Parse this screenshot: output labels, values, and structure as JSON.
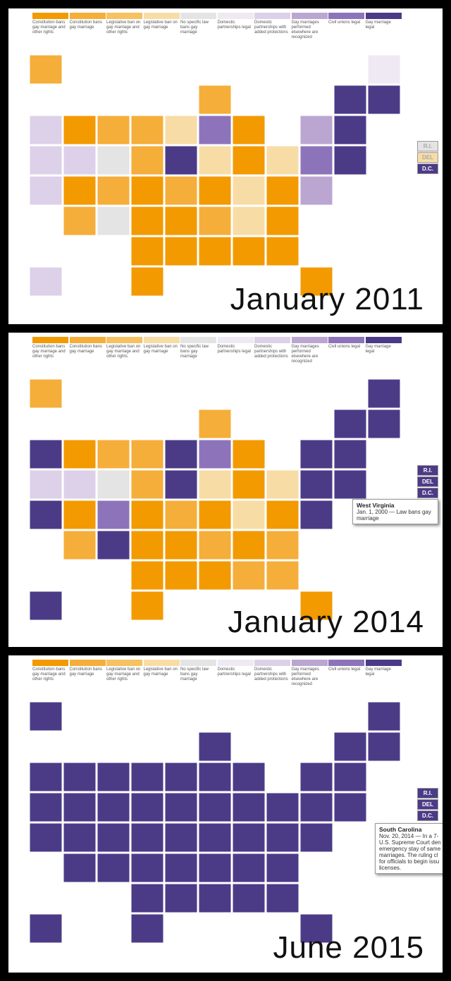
{
  "legend": {
    "labels": [
      "Constitution bans gay marriage and other rights",
      "Constitution bans gay marriage",
      "Legislative ban on gay marriage and other rights",
      "Legislative ban on gay marriage",
      "No specific law bans gay marriage",
      "Domestic partnerships legal",
      "Domestic partnerships with added protections",
      "Gay marriages performed elsewhere are recognized",
      "Civil unions legal",
      "Gay marriage legal"
    ],
    "colors": [
      "#f29a00",
      "#f5ae3a",
      "#f6c160",
      "#f8dca6",
      "#e4e4e4",
      "#efe9f3",
      "#ddd1e9",
      "#bba6d2",
      "#8d74ba",
      "#4b3b87"
    ]
  },
  "boxes": [
    "R.I.",
    "DEL",
    "D.C."
  ],
  "panels": [
    {
      "caption": "January 2011"
    },
    {
      "caption": "January 2014",
      "tooltip": {
        "title": "West Virginia",
        "lines": [
          "Jan. 1, 2000 — Law bans gay marriage"
        ]
      }
    },
    {
      "caption": "June 2015",
      "tooltip": {
        "title": "South Carolina",
        "lines": [
          "Nov. 20, 2014 — In a 7-",
          "U.S. Supreme Court den",
          "emergency stay of same",
          "marriages. The ruling cl",
          "for officials to begin issu",
          "licenses."
        ]
      }
    }
  ]
}
